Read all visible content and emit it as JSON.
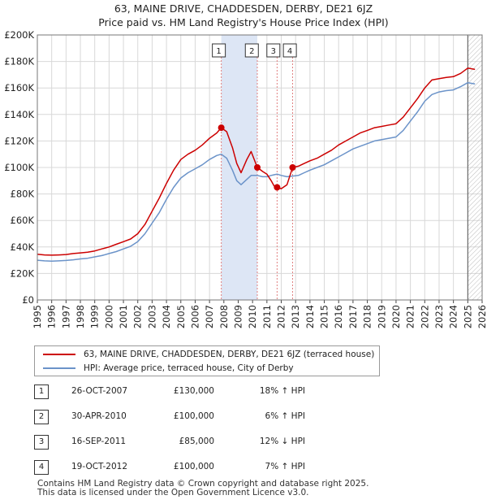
{
  "title": {
    "line1": "63, MAINE DRIVE, CHADDESDEN, DERBY, DE21 6JZ",
    "line2": "Price paid vs. HM Land Registry's House Price Index (HPI)"
  },
  "colors": {
    "property": "#cc0000",
    "hpi": "#6b93c9",
    "highlight": "#dde6f5",
    "marker_line": "#e08080",
    "grid": "#d8d8d8"
  },
  "chart_data": {
    "type": "line",
    "ylim": [
      0,
      200000
    ],
    "xlim": [
      1995,
      2026
    ],
    "y_ticks": [
      {
        "value": 0,
        "label": "£0"
      },
      {
        "value": 20000,
        "label": "£20K"
      },
      {
        "value": 40000,
        "label": "£40K"
      },
      {
        "value": 60000,
        "label": "£60K"
      },
      {
        "value": 80000,
        "label": "£80K"
      },
      {
        "value": 100000,
        "label": "£100K"
      },
      {
        "value": 120000,
        "label": "£120K"
      },
      {
        "value": 140000,
        "label": "£140K"
      },
      {
        "value": 160000,
        "label": "£160K"
      },
      {
        "value": 180000,
        "label": "£180K"
      },
      {
        "value": 200000,
        "label": "£200K"
      }
    ],
    "x_ticks": [
      "1995",
      "1996",
      "1997",
      "1998",
      "1999",
      "2000",
      "2001",
      "2002",
      "2003",
      "2004",
      "2005",
      "2006",
      "2007",
      "2008",
      "2009",
      "2010",
      "2011",
      "2012",
      "2013",
      "2014",
      "2015",
      "2016",
      "2017",
      "2018",
      "2019",
      "2020",
      "2021",
      "2022",
      "2023",
      "2024",
      "2025",
      "2026"
    ],
    "highlight_range": [
      2007.82,
      2010.33
    ],
    "forecast_start": 2025.0,
    "series": [
      {
        "name": "63, MAINE DRIVE, CHADDESDEN, DERBY, DE21 6JZ (terraced house)",
        "color": "#cc0000",
        "points": [
          [
            1995.0,
            34500
          ],
          [
            1995.5,
            34000
          ],
          [
            1996.0,
            33800
          ],
          [
            1996.5,
            34000
          ],
          [
            1997.0,
            34300
          ],
          [
            1997.5,
            35000
          ],
          [
            1998.0,
            35500
          ],
          [
            1998.5,
            36000
          ],
          [
            1999.0,
            37000
          ],
          [
            1999.5,
            38500
          ],
          [
            2000.0,
            40000
          ],
          [
            2000.5,
            42000
          ],
          [
            2001.0,
            44000
          ],
          [
            2001.5,
            46000
          ],
          [
            2002.0,
            50000
          ],
          [
            2002.5,
            57000
          ],
          [
            2003.0,
            67000
          ],
          [
            2003.5,
            77000
          ],
          [
            2004.0,
            88000
          ],
          [
            2004.5,
            98000
          ],
          [
            2005.0,
            106000
          ],
          [
            2005.5,
            110000
          ],
          [
            2006.0,
            113000
          ],
          [
            2006.5,
            117000
          ],
          [
            2007.0,
            122000
          ],
          [
            2007.5,
            126000
          ],
          [
            2007.82,
            130000
          ],
          [
            2008.2,
            127000
          ],
          [
            2008.6,
            115000
          ],
          [
            2008.9,
            103000
          ],
          [
            2009.2,
            96000
          ],
          [
            2009.6,
            106000
          ],
          [
            2009.9,
            112000
          ],
          [
            2010.33,
            100000
          ],
          [
            2010.7,
            97000
          ],
          [
            2011.0,
            95000
          ],
          [
            2011.3,
            90000
          ],
          [
            2011.5,
            86000
          ],
          [
            2011.71,
            85000
          ],
          [
            2012.0,
            84000
          ],
          [
            2012.4,
            87000
          ],
          [
            2012.79,
            100000
          ],
          [
            2013.2,
            101000
          ],
          [
            2013.6,
            103000
          ],
          [
            2014.0,
            105000
          ],
          [
            2014.5,
            107000
          ],
          [
            2015.0,
            110000
          ],
          [
            2015.5,
            113000
          ],
          [
            2016.0,
            117000
          ],
          [
            2016.5,
            120000
          ],
          [
            2017.0,
            123000
          ],
          [
            2017.5,
            126000
          ],
          [
            2018.0,
            128000
          ],
          [
            2018.5,
            130000
          ],
          [
            2019.0,
            131000
          ],
          [
            2019.5,
            132000
          ],
          [
            2020.0,
            133000
          ],
          [
            2020.5,
            138000
          ],
          [
            2021.0,
            145000
          ],
          [
            2021.5,
            152000
          ],
          [
            2022.0,
            160000
          ],
          [
            2022.5,
            166000
          ],
          [
            2023.0,
            167000
          ],
          [
            2023.5,
            168000
          ],
          [
            2024.0,
            168500
          ],
          [
            2024.5,
            171000
          ],
          [
            2025.0,
            175000
          ],
          [
            2025.5,
            174000
          ]
        ]
      },
      {
        "name": "HPI: Average price, terraced house, City of Derby",
        "color": "#6b93c9",
        "points": [
          [
            1995.0,
            30000
          ],
          [
            1995.5,
            29500
          ],
          [
            1996.0,
            29300
          ],
          [
            1996.5,
            29500
          ],
          [
            1997.0,
            29800
          ],
          [
            1997.5,
            30300
          ],
          [
            1998.0,
            31000
          ],
          [
            1998.5,
            31500
          ],
          [
            1999.0,
            32500
          ],
          [
            1999.5,
            33500
          ],
          [
            2000.0,
            35000
          ],
          [
            2000.5,
            36500
          ],
          [
            2001.0,
            38500
          ],
          [
            2001.5,
            40500
          ],
          [
            2002.0,
            44000
          ],
          [
            2002.5,
            50000
          ],
          [
            2003.0,
            58000
          ],
          [
            2003.5,
            66000
          ],
          [
            2004.0,
            76000
          ],
          [
            2004.5,
            85000
          ],
          [
            2005.0,
            92000
          ],
          [
            2005.5,
            96000
          ],
          [
            2006.0,
            99000
          ],
          [
            2006.5,
            102000
          ],
          [
            2007.0,
            106000
          ],
          [
            2007.5,
            109000
          ],
          [
            2007.82,
            110000
          ],
          [
            2008.2,
            107000
          ],
          [
            2008.6,
            98000
          ],
          [
            2008.9,
            90000
          ],
          [
            2009.2,
            87000
          ],
          [
            2009.6,
            91000
          ],
          [
            2009.9,
            94000
          ],
          [
            2010.33,
            94000
          ],
          [
            2010.7,
            93000
          ],
          [
            2011.0,
            93000
          ],
          [
            2011.3,
            94000
          ],
          [
            2011.5,
            94500
          ],
          [
            2011.71,
            95000
          ],
          [
            2012.0,
            94000
          ],
          [
            2012.4,
            93000
          ],
          [
            2012.79,
            93500
          ],
          [
            2013.2,
            94000
          ],
          [
            2013.6,
            96000
          ],
          [
            2014.0,
            98000
          ],
          [
            2014.5,
            100000
          ],
          [
            2015.0,
            102000
          ],
          [
            2015.5,
            105000
          ],
          [
            2016.0,
            108000
          ],
          [
            2016.5,
            111000
          ],
          [
            2017.0,
            114000
          ],
          [
            2017.5,
            116000
          ],
          [
            2018.0,
            118000
          ],
          [
            2018.5,
            120000
          ],
          [
            2019.0,
            121000
          ],
          [
            2019.5,
            122000
          ],
          [
            2020.0,
            123000
          ],
          [
            2020.5,
            128000
          ],
          [
            2021.0,
            135000
          ],
          [
            2021.5,
            142000
          ],
          [
            2022.0,
            150000
          ],
          [
            2022.5,
            155000
          ],
          [
            2023.0,
            157000
          ],
          [
            2023.5,
            158000
          ],
          [
            2024.0,
            158500
          ],
          [
            2024.5,
            161000
          ],
          [
            2025.0,
            164000
          ],
          [
            2025.5,
            163000
          ]
        ]
      }
    ],
    "sales": [
      {
        "label": "1",
        "x": 2007.82,
        "price": 130000
      },
      {
        "label": "2",
        "x": 2010.33,
        "price": 100000
      },
      {
        "label": "3",
        "x": 2011.71,
        "price": 85000
      },
      {
        "label": "4",
        "x": 2012.79,
        "price": 100000
      }
    ]
  },
  "legend": {
    "property_label": "63, MAINE DRIVE, CHADDESDEN, DERBY, DE21 6JZ (terraced house)",
    "hpi_label": "HPI: Average price, terraced house, City of Derby"
  },
  "transactions": [
    {
      "num": "1",
      "date": "26-OCT-2007",
      "price": "£130,000",
      "hpi": "18% ↑ HPI"
    },
    {
      "num": "2",
      "date": "30-APR-2010",
      "price": "£100,000",
      "hpi": "6% ↑ HPI"
    },
    {
      "num": "3",
      "date": "16-SEP-2011",
      "price": "£85,000",
      "hpi": "12% ↓ HPI"
    },
    {
      "num": "4",
      "date": "19-OCT-2012",
      "price": "£100,000",
      "hpi": "7% ↑ HPI"
    }
  ],
  "footer": {
    "line1": "Contains HM Land Registry data © Crown copyright and database right 2025.",
    "line2": "This data is licensed under the Open Government Licence v3.0."
  }
}
